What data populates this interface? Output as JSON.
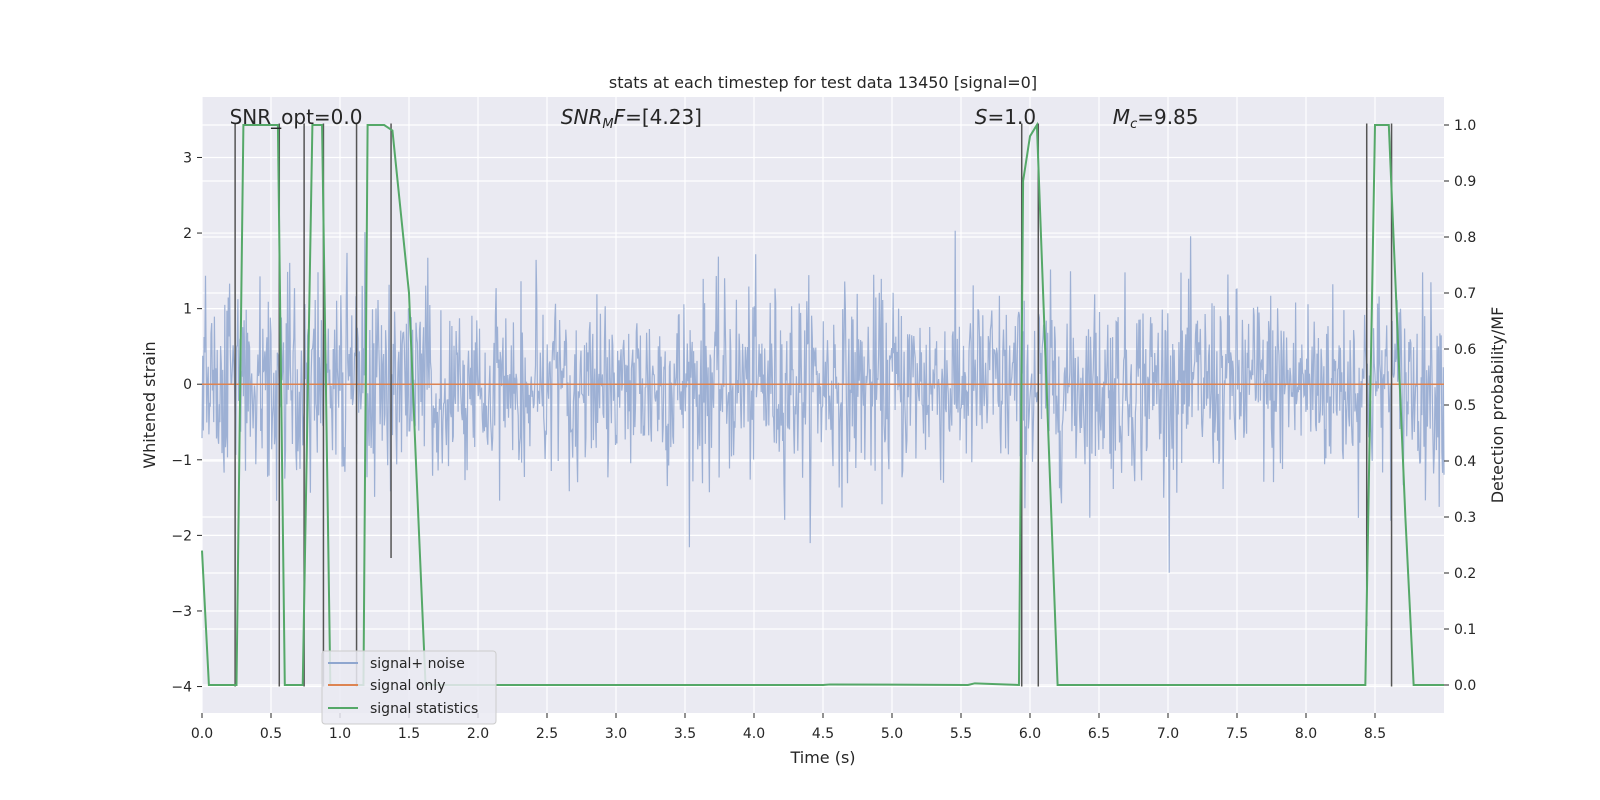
{
  "chart_data": {
    "type": "line",
    "title": "stats at each timestep for test data 13450 [signal=0]",
    "xlabel": "Time (s)",
    "ylabel_left": "Whitened strain",
    "ylabel_right": "Detection probability/MF",
    "xlim": [
      0,
      9.0
    ],
    "ylim_left": [
      -4.35,
      3.8
    ],
    "ylim_right": [
      -0.05,
      1.05
    ],
    "x_ticks": [
      0,
      0.5,
      1,
      1.5,
      2,
      2.5,
      3,
      3.5,
      4,
      4.5,
      5,
      5.5,
      6,
      6.5,
      7,
      7.5,
      8,
      8.5
    ],
    "x_tick_labels": [
      "0.0",
      "0.5",
      "1.0",
      "1.5",
      "2.0",
      "2.5",
      "3.0",
      "3.5",
      "4.0",
      "4.5",
      "5.0",
      "5.5",
      "6.0",
      "6.5",
      "7.0",
      "7.5",
      "8.0",
      "8.5"
    ],
    "y_ticks_left": [
      -4,
      -3,
      -2,
      -1,
      0,
      1,
      2,
      3
    ],
    "y_tick_labels_left": [
      "−4",
      "−3",
      "−2",
      "−1",
      "0",
      "1",
      "2",
      "3"
    ],
    "y_ticks_right": [
      0,
      0.1,
      0.2,
      0.3,
      0.4,
      0.5,
      0.6,
      0.7,
      0.8,
      0.9,
      1.0
    ],
    "y_tick_labels_right": [
      "0.0",
      "0.1",
      "0.2",
      "0.3",
      "0.4",
      "0.5",
      "0.6",
      "0.7",
      "0.8",
      "0.9",
      "1.0"
    ],
    "grid": true,
    "legend_position": "lower-left",
    "annotations": [
      {
        "text": "SNR_opt=0.0",
        "x": 0.2
      },
      {
        "html": "<tspan font-style='italic'>SNR</tspan><tspan font-style='italic' font-size='13' dy='4'>M</tspan><tspan font-style='italic' dy='-4'>F</tspan>=[4.23]",
        "text": "SNR_MF=[4.23]",
        "x": 2.6
      },
      {
        "html": "<tspan font-style='italic'>S</tspan>=1.0",
        "text": "S=1.0",
        "x": 5.6
      },
      {
        "html": "<tspan font-style='italic'>M</tspan><tspan font-style='italic' font-size='13' dy='4'>c</tspan><tspan dy='-4'>=9.85</tspan>",
        "text": "M_c=9.85",
        "x": 6.6
      }
    ],
    "series": [
      {
        "name": "signal+ noise",
        "axis": "left",
        "color": "#8fa6cf",
        "kind": "noise",
        "std": 0.62,
        "n_points": 1800
      },
      {
        "name": "signal only",
        "axis": "left",
        "color": "#dd8452",
        "x": [
          0,
          9.0
        ],
        "y": [
          0,
          0
        ]
      },
      {
        "name": "signal statistics",
        "axis": "right",
        "color": "#55a868",
        "x": [
          0.0,
          0.05,
          0.25,
          0.3,
          0.55,
          0.6,
          0.73,
          0.8,
          0.87,
          0.93,
          1.17,
          1.2,
          1.32,
          1.38,
          1.5,
          1.55,
          1.62,
          4.5,
          4.55,
          5.55,
          5.6,
          5.92,
          5.95,
          6.0,
          6.05,
          6.2,
          8.43,
          8.5,
          8.6,
          8.72,
          8.78,
          9.0
        ],
        "y": [
          0.24,
          0.0,
          0.0,
          1.0,
          1.0,
          0.0,
          0.0,
          1.0,
          1.0,
          0.0,
          0.0,
          1.0,
          1.0,
          0.99,
          0.7,
          0.4,
          0.0,
          0.0,
          0.001,
          0.0,
          0.003,
          0.0,
          0.9,
          0.98,
          1.0,
          0.0,
          0.0,
          1.0,
          1.0,
          0.3,
          0.0,
          0.0
        ]
      }
    ],
    "vlines": {
      "color": "#555555",
      "ranges": [
        [
          0.24,
          -4.0,
          3.45
        ],
        [
          0.56,
          -4.0,
          3.45
        ],
        [
          0.74,
          -4.0,
          3.45
        ],
        [
          0.88,
          -4.0,
          3.45
        ],
        [
          1.12,
          -4.0,
          3.45
        ],
        [
          1.37,
          -2.3,
          3.45
        ],
        [
          5.94,
          -4.0,
          3.45
        ],
        [
          6.06,
          -4.0,
          3.45
        ],
        [
          8.44,
          -3.2,
          3.45
        ],
        [
          8.62,
          -4.0,
          3.45
        ]
      ]
    },
    "colors": {
      "background": "#eaeaf2",
      "grid": "#ffffff"
    }
  }
}
